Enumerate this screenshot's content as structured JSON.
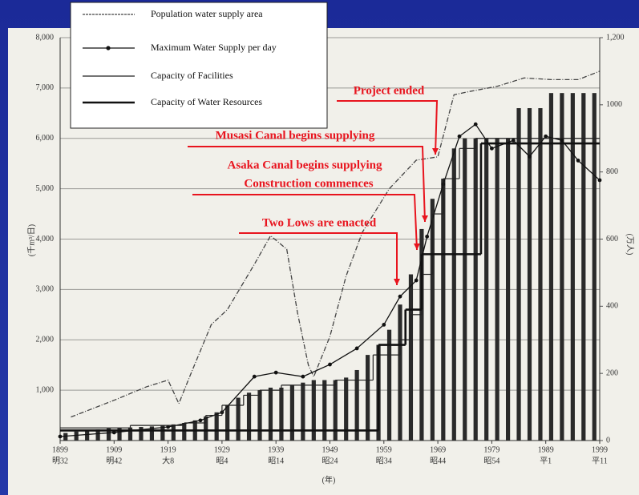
{
  "chart_data": {
    "type": "bar",
    "x": [
      1900,
      1902,
      1904,
      1906,
      1908,
      1910,
      1912,
      1914,
      1916,
      1918,
      1920,
      1922,
      1924,
      1926,
      1928,
      1930,
      1932,
      1934,
      1936,
      1938,
      1940,
      1942,
      1944,
      1946,
      1948,
      1950,
      1952,
      1954,
      1956,
      1958,
      1960,
      1962,
      1964,
      1966,
      1968,
      1970,
      1972,
      1974,
      1976,
      1978,
      1980,
      1982,
      1984,
      1986,
      1988,
      1990,
      1992,
      1994,
      1996,
      1998
    ],
    "values": [
      150,
      180,
      200,
      220,
      240,
      250,
      260,
      270,
      280,
      300,
      320,
      350,
      400,
      480,
      560,
      700,
      850,
      950,
      1000,
      1050,
      1050,
      1100,
      1150,
      1200,
      1200,
      1200,
      1250,
      1400,
      1700,
      1900,
      2200,
      2700,
      3300,
      4200,
      4800,
      5200,
      5800,
      6000,
      6000,
      6000,
      6000,
      6000,
      6600,
      6600,
      6600,
      6900,
      6900,
      6900,
      6900,
      6900
    ],
    "color": "#2a2a2a",
    "series": [
      {
        "name": "Population water supply area",
        "color": "#444444",
        "style": "dashed",
        "axis": "y2",
        "x": [
          1901,
          1909,
          1915,
          1919,
          1921,
          1923,
          1927,
          1930,
          1935,
          1938,
          1941,
          1943,
          1945,
          1946,
          1949,
          1952,
          1955,
          1960,
          1965,
          1969,
          1972,
          1975,
          1980,
          1985,
          1990,
          1995,
          1999
        ],
        "values": [
          70,
          120,
          160,
          180,
          110,
          190,
          345,
          390,
          525,
          610,
          570,
          380,
          225,
          190,
          310,
          490,
          620,
          750,
          835,
          845,
          1030,
          1040,
          1055,
          1080,
          1075,
          1075,
          1100
        ]
      },
      {
        "name": "Maximum Water Supply per day",
        "color": "#111111",
        "style": "markers",
        "x": [
          1899,
          1909,
          1919,
          1925,
          1929,
          1935,
          1939,
          1944,
          1949,
          1954,
          1959,
          1962,
          1965,
          1967,
          1970,
          1973,
          1976,
          1979,
          1983,
          1986,
          1989,
          1992,
          1995,
          1999
        ],
        "values": [
          80,
          160,
          270,
          400,
          560,
          1270,
          1350,
          1270,
          1510,
          1830,
          2300,
          2860,
          3180,
          4050,
          5090,
          6040,
          6280,
          5800,
          5960,
          5640,
          6040,
          5960,
          5560,
          5170
        ]
      },
      {
        "name": "Capacity of Facilities",
        "color": "#222222",
        "style": "step",
        "x": [
          1899,
          1912,
          1922,
          1926,
          1929,
          1933,
          1936,
          1940,
          1950,
          1957,
          1962,
          1964,
          1966,
          1968,
          1970,
          1973,
          1976
        ],
        "values": [
          250,
          300,
          350,
          500,
          700,
          900,
          1000,
          1100,
          1200,
          1700,
          2000,
          2500,
          3300,
          4500,
          5200,
          5800,
          6000
        ]
      },
      {
        "name": "Capacity of Water Resources",
        "color": "#111111",
        "style": "thick-step",
        "x": [
          1899,
          1958,
          1963,
          1966,
          1977
        ],
        "values": [
          200,
          1900,
          2600,
          3700,
          5900
        ]
      }
    ],
    "xlim": [
      1899,
      1999
    ],
    "xticks": [
      1899,
      1909,
      1919,
      1929,
      1939,
      1949,
      1959,
      1969,
      1979,
      1989,
      1999
    ],
    "x_era_labels": [
      "明32",
      "明42",
      "大8",
      "昭4",
      "昭14",
      "昭24",
      "昭34",
      "昭44",
      "昭54",
      "平1",
      "平11"
    ],
    "xlabel": "(年)",
    "ylabel": "(千m³/日)",
    "y2label": "(万人)",
    "ylim": [
      0,
      8000
    ],
    "yticks": [
      {
        "value": 1000,
        "label": "1,000"
      },
      {
        "value": 2000,
        "label": "2,000"
      },
      {
        "value": 3000,
        "label": "3,000"
      },
      {
        "value": 4000,
        "label": "4,000"
      },
      {
        "value": 5000,
        "label": "5,000"
      },
      {
        "value": 6000,
        "label": "6,000"
      },
      {
        "value": 7000,
        "label": "7,000"
      },
      {
        "value": 8000,
        "label": "8,000"
      }
    ],
    "y2lim": [
      0,
      1200
    ],
    "y2ticks": [
      0,
      200,
      400,
      600,
      800,
      1000,
      {
        "value": 1200,
        "label": "1,200"
      }
    ],
    "grid": true,
    "legend": "top-left",
    "annotations": [
      "Project ended",
      "Musasi Canal begins supplying",
      "Asaka Canal begins supplying",
      "Construction commences",
      "Two Lows are enacted"
    ],
    "annotation_color": "#e8141e"
  }
}
